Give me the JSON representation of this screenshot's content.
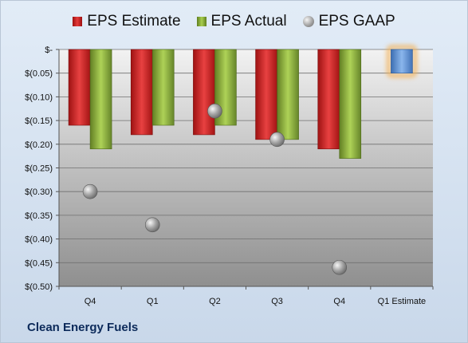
{
  "chart_data": {
    "type": "bar",
    "categories": [
      "Q4",
      "Q1",
      "Q2",
      "Q3",
      "Q4",
      "Q1 Estimate"
    ],
    "series": [
      {
        "name": "EPS Estimate",
        "values": [
          -0.16,
          -0.18,
          -0.18,
          -0.19,
          -0.21,
          null
        ]
      },
      {
        "name": "EPS Actual",
        "values": [
          -0.21,
          -0.16,
          -0.16,
          -0.19,
          -0.23,
          null
        ]
      },
      {
        "name": "EPS GAAP",
        "values": [
          -0.3,
          -0.37,
          -0.13,
          -0.19,
          -0.46,
          null
        ]
      }
    ],
    "forecast": {
      "category": "Q1 Estimate",
      "value": -0.05
    },
    "yticks": [
      0,
      -0.05,
      -0.1,
      -0.15,
      -0.2,
      -0.25,
      -0.3,
      -0.35,
      -0.4,
      -0.45,
      -0.5
    ],
    "ytick_labels": [
      "$-",
      "$(0.05)",
      "$(0.10)",
      "$(0.15)",
      "$(0.20)",
      "$(0.25)",
      "$(0.30)",
      "$(0.35)",
      "$(0.40)",
      "$(0.45)",
      "$(0.50)"
    ],
    "ylim": [
      -0.5,
      0
    ],
    "grid": true,
    "legend_position": "top",
    "colors": {
      "estimate": "#d42a2a",
      "actual": "#8db33a",
      "gaap": "#a6a6a6",
      "forecast": "#5f93d6",
      "forecast_glow": "#f3b25a"
    }
  },
  "legend": {
    "estimate_label": "EPS Estimate",
    "actual_label": "EPS Actual",
    "gaap_label": "EPS GAAP"
  },
  "company": "Clean Energy Fuels"
}
